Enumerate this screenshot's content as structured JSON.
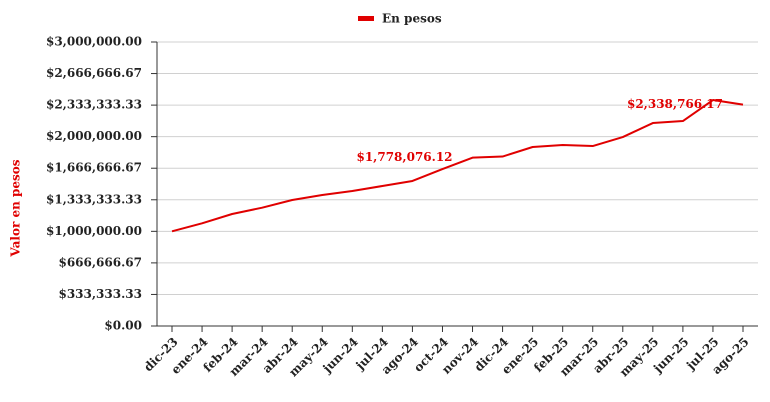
{
  "chart_data": {
    "type": "line",
    "y_label": "Valor en pesos",
    "categories": [
      "dic-23",
      "ene-24",
      "feb-24",
      "mar-24",
      "abr-24",
      "may-24",
      "jun-24",
      "jul-24",
      "ago-24",
      "oct-24",
      "nov-24",
      "dic-24",
      "ene-25",
      "feb-25",
      "mar-25",
      "abr-25",
      "may-25",
      "jun-25",
      "jul-25",
      "ago-25"
    ],
    "series": [
      {
        "name": "En pesos",
        "color": "#e00000",
        "values": [
          1000000,
          1085000,
          1183000,
          1250000,
          1331000,
          1384000,
          1426000,
          1479000,
          1532000,
          1658000,
          1778076.12,
          1790000,
          1891000,
          1912000,
          1901000,
          1996000,
          2144000,
          2165000,
          2387000,
          2338766.17
        ],
        "value_labels": [
          null,
          null,
          null,
          null,
          null,
          null,
          null,
          null,
          null,
          null,
          "$1,778,076.12",
          null,
          null,
          null,
          null,
          null,
          null,
          null,
          null,
          "$2,338,766.17"
        ]
      }
    ],
    "ylim": [
      0,
      3000000
    ],
    "yticks": [
      {
        "value": 0,
        "label": "$0.00"
      },
      {
        "value": 333333.33,
        "label": "$333,333.33"
      },
      {
        "value": 666666.67,
        "label": "$666,666.67"
      },
      {
        "value": 1000000,
        "label": "$1,000,000.00"
      },
      {
        "value": 1333333.33,
        "label": "$1,333,333.33"
      },
      {
        "value": 1666666.67,
        "label": "$1,666,666.67"
      },
      {
        "value": 2000000,
        "label": "$2,000,000.00"
      },
      {
        "value": 2333333.33,
        "label": "$2,333,333.33"
      },
      {
        "value": 2666666.67,
        "label": "$2,666,666.67"
      },
      {
        "value": 3000000,
        "label": "$3,000,000.00"
      }
    ],
    "grid": true,
    "legend": "top"
  }
}
